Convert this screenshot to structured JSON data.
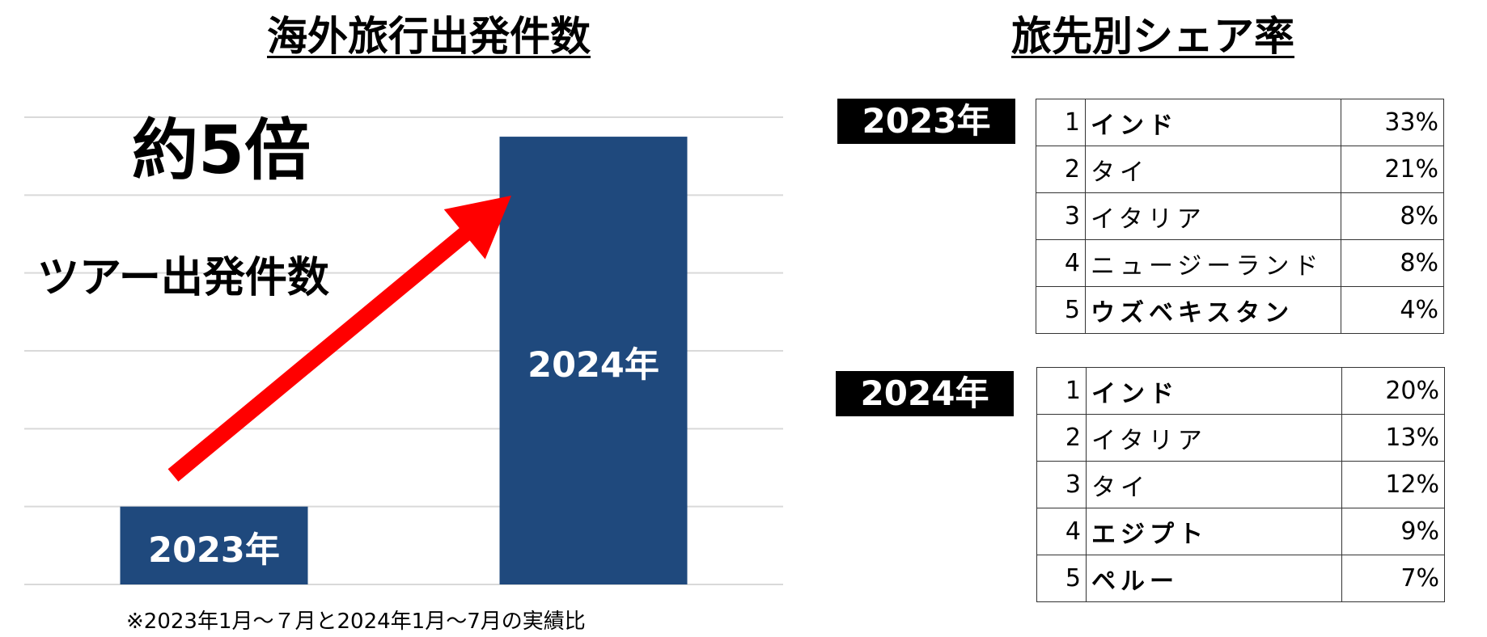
{
  "left_title": "海外旅行出発件数",
  "right_title": "旅先別シェア率",
  "ratio_label": "約5倍",
  "tour_label": "ツアー出発件数",
  "footnote": "※2023年1月～７月と2024年1月～7月の実績比",
  "colors": {
    "bar": "#1f497d",
    "arrow": "#ff0000",
    "grid": "#d9d9d9"
  },
  "chart_data": {
    "type": "bar",
    "categories": [
      "2023年",
      "2024年"
    ],
    "values": [
      1,
      5.75
    ],
    "ylim": [
      0,
      6
    ],
    "grid": true,
    "annotation": "約5倍"
  },
  "tables": [
    {
      "year": "2023年",
      "rows": [
        {
          "rank": "1",
          "name": "インド",
          "share": "33%"
        },
        {
          "rank": "2",
          "name": "タイ",
          "share": "21%"
        },
        {
          "rank": "3",
          "name": "イタリア",
          "share": "8%"
        },
        {
          "rank": "4",
          "name": "ニュージーランド",
          "share": "8%"
        },
        {
          "rank": "5",
          "name": "ウズベキスタン",
          "share": "4%"
        }
      ]
    },
    {
      "year": "2024年",
      "rows": [
        {
          "rank": "1",
          "name": "インド",
          "share": "20%"
        },
        {
          "rank": "2",
          "name": "イタリア",
          "share": "13%"
        },
        {
          "rank": "3",
          "name": "タイ",
          "share": "12%"
        },
        {
          "rank": "4",
          "name": "エジプト",
          "share": "9%"
        },
        {
          "rank": "5",
          "name": "ペルー",
          "share": "7%"
        }
      ]
    }
  ]
}
